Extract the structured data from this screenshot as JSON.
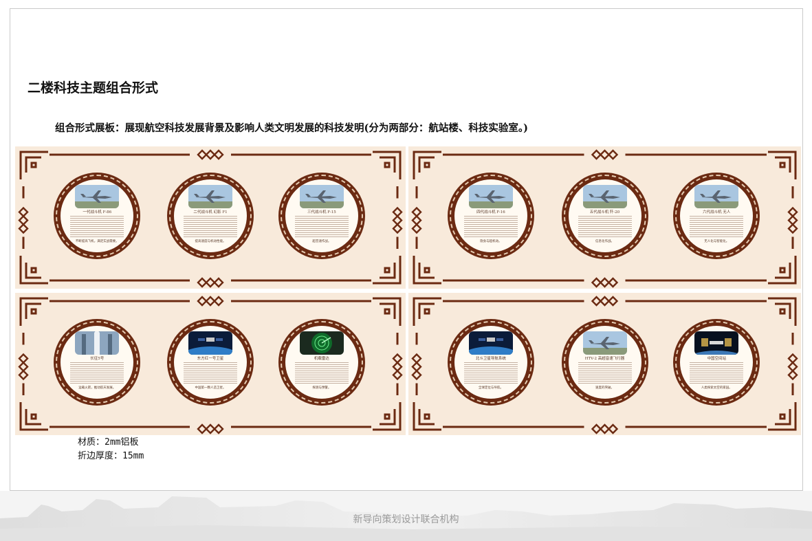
{
  "page": {
    "title": "二楼科技主题组合形式",
    "subtitle": "组合形式展板：展现航空科技发展背景及影响人类文明发展的科技发明(分为两部分：航站楼、科技实验室。)"
  },
  "colors": {
    "panel_bg": "#f8eadb",
    "ornament": "#6b2a12",
    "medallion": "#6b2a12"
  },
  "panels": [
    {
      "cards": [
        {
          "title": "一代战斗机  F-86",
          "caption": "不断提高飞机，满足实战需要。",
          "photo": "jet-photo"
        },
        {
          "title": "二代战斗机  幻影 F1",
          "caption": "提高速度与机动性能。",
          "photo": "jet-photo"
        },
        {
          "title": "三代战斗机  F-15",
          "caption": "超音速作战。",
          "photo": "jet-photo"
        }
      ]
    },
    {
      "cards": [
        {
          "title": "四代战斗机  F-16",
          "caption": "隐身与超机动。",
          "photo": "jet-photo"
        },
        {
          "title": "五代战斗机  歼-20",
          "caption": "信息化作战。",
          "photo": "jet-photo"
        },
        {
          "title": "六代战斗机  无人",
          "caption": "无人化与智能化。",
          "photo": "jet-photo"
        }
      ]
    },
    {
      "cards": [
        {
          "title": "长征5号",
          "caption": "运载火箭，推动航天发展。",
          "photo": "rocket-photo"
        },
        {
          "title": "东方红一号卫星",
          "caption": "中国第一颗人造卫星。",
          "photo": "satellite-photo"
        },
        {
          "title": "机载雷达",
          "caption": "探测与预警。",
          "photo": "radar-photo"
        }
      ]
    },
    {
      "cards": [
        {
          "title": "北斗卫星导航系统",
          "caption": "全球定位与导航。",
          "photo": "satellite-photo"
        },
        {
          "title": "HTV-2 高超音速飞行器",
          "caption": "速度的突破。",
          "photo": "jet-photo"
        },
        {
          "title": "中国空间站",
          "caption": "人类探索太空的家园。",
          "photo": "station-photo"
        }
      ]
    }
  ],
  "specs": {
    "material": "材质：2mm铝板",
    "fold_thickness": "折边厚度：15mm"
  },
  "footer": {
    "text": "新导向策划设计联合机构"
  }
}
